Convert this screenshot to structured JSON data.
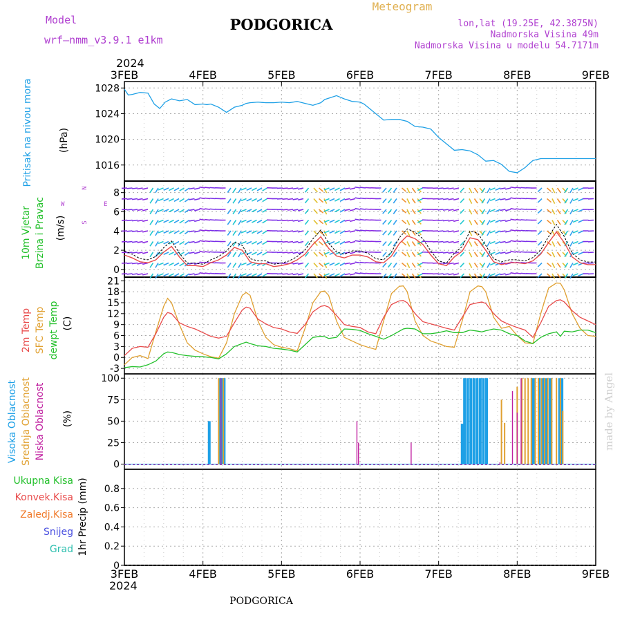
{
  "header": {
    "model_label": "Model",
    "model_name": "wrf—nmm_v3.9.1  e1km",
    "location": "PODGORICA",
    "product": "Meteogram",
    "lonlat": "lon,lat (19.25E, 42.3875N)",
    "elevation": "Nadmorska Visina 49m",
    "model_elevation": "Nadmorska Visina u modelu 54.7171m"
  },
  "footer": {
    "location": "PODGORICA"
  },
  "watermark": "made by Angel",
  "colors": {
    "pressure": "#1ea0e6",
    "t2m": "#e84a4a",
    "sfc": "#e0a030",
    "dewpt": "#22c02a",
    "high_cloud": "#1ea0e6",
    "mid_cloud": "#e0a030",
    "low_cloud": "#c020a0",
    "wind_label": "#22c02a",
    "wind_label2": "#22c02a",
    "compass": "#b040d0"
  },
  "chart_data": [
    {
      "type": "line",
      "panel": "pressure",
      "ylabel": [
        "Pritisak na nivou mora",
        "(hPa)"
      ],
      "top_year": "2024",
      "x_ticks": [
        "3FEB",
        "4FEB",
        "5FEB",
        "6FEB",
        "7FEB",
        "8FEB",
        "9FEB"
      ],
      "ylim": [
        1013.5,
        1029
      ],
      "y_ticks": [
        1016,
        1020,
        1024,
        1028
      ],
      "grid": true,
      "series": [
        {
          "name": "Pritisak na nivou mora",
          "x": [
            0,
            0.05,
            0.1,
            0.2,
            0.3,
            0.38,
            0.45,
            0.52,
            0.6,
            0.7,
            0.8,
            0.9,
            1.0,
            1.05,
            1.1,
            1.2,
            1.3,
            1.4,
            1.5,
            1.55,
            1.6,
            1.7,
            1.8,
            1.9,
            2.0,
            2.1,
            2.2,
            2.3,
            2.4,
            2.5,
            2.55,
            2.6,
            2.7,
            2.8,
            2.9,
            3.0,
            3.05,
            3.1,
            3.2,
            3.3,
            3.4,
            3.5,
            3.6,
            3.7,
            3.8,
            3.9,
            4.0,
            4.1,
            4.2,
            4.3,
            4.4,
            4.5,
            4.6,
            4.7,
            4.8,
            4.9,
            5.0,
            5.1,
            5.2,
            5.3,
            5.4,
            5.5,
            5.6,
            5.7,
            5.8,
            5.9,
            6.0
          ],
          "y": [
            1027.8,
            1026.9,
            1027.0,
            1027.3,
            1027.2,
            1025.5,
            1024.8,
            1025.8,
            1026.3,
            1026.0,
            1026.2,
            1025.4,
            1025.5,
            1025.4,
            1025.5,
            1025.0,
            1024.2,
            1025.0,
            1025.3,
            1025.6,
            1025.7,
            1025.8,
            1025.7,
            1025.7,
            1025.8,
            1025.7,
            1025.9,
            1025.6,
            1025.3,
            1025.7,
            1026.2,
            1026.4,
            1026.8,
            1026.3,
            1025.9,
            1025.8,
            1025.5,
            1025.0,
            1024.0,
            1023.0,
            1023.1,
            1023.1,
            1022.8,
            1022.0,
            1021.9,
            1021.6,
            1020.3,
            1019.3,
            1018.3,
            1018.4,
            1018.2,
            1017.6,
            1016.6,
            1016.7,
            1016.1,
            1015.0,
            1014.8,
            1015.6,
            1016.7,
            1017.0,
            1017.0,
            1017.0,
            1017.0,
            1017.0,
            1017.0,
            1017.0,
            1017.0
          ]
        }
      ]
    },
    {
      "type": "line",
      "panel": "wind",
      "ylabel": [
        "10m Vjetar",
        "Brzina i Pravac",
        "(m/s)"
      ],
      "compass": [
        "N",
        "^",
        "|",
        "<",
        "W",
        "E",
        "S"
      ],
      "ylim": [
        -0.8,
        9.2
      ],
      "y_ticks": [
        0,
        2,
        4,
        6,
        8
      ],
      "grid": true,
      "series": [
        {
          "name": "speed",
          "x": [
            0,
            0.1,
            0.2,
            0.3,
            0.4,
            0.5,
            0.6,
            0.7,
            0.8,
            0.9,
            1.0,
            1.1,
            1.2,
            1.3,
            1.4,
            1.5,
            1.6,
            1.7,
            1.8,
            1.9,
            2.0,
            2.1,
            2.2,
            2.3,
            2.4,
            2.5,
            2.6,
            2.7,
            2.8,
            2.9,
            3.0,
            3.1,
            3.2,
            3.3,
            3.4,
            3.5,
            3.6,
            3.7,
            3.8,
            3.9,
            4.0,
            4.1,
            4.2,
            4.3,
            4.4,
            4.5,
            4.6,
            4.7,
            4.8,
            4.9,
            5.0,
            5.1,
            5.2,
            5.3,
            5.4,
            5.5,
            5.6,
            5.7,
            5.8,
            5.9,
            6.0
          ],
          "y": [
            1.5,
            1.2,
            0.8,
            0.7,
            1.0,
            1.8,
            2.4,
            1.3,
            0.4,
            0.4,
            0.3,
            0.7,
            1.0,
            1.5,
            2.3,
            2.0,
            0.8,
            0.6,
            0.6,
            0.3,
            0.4,
            0.6,
            1.0,
            1.6,
            2.6,
            3.4,
            2.2,
            1.4,
            1.2,
            1.5,
            1.5,
            1.3,
            0.8,
            0.7,
            1.4,
            2.7,
            3.5,
            3.2,
            2.6,
            1.5,
            0.6,
            0.4,
            1.3,
            1.9,
            3.3,
            3.1,
            2.0,
            0.8,
            0.5,
            0.7,
            0.7,
            0.6,
            0.9,
            1.6,
            2.8,
            3.9,
            2.8,
            1.3,
            0.7,
            0.5,
            0.5
          ]
        }
      ]
    },
    {
      "type": "line",
      "panel": "temperature",
      "ylabel": [
        "2m Temp",
        "SFC Temp",
        "dewpt Temp",
        "(C)"
      ],
      "ylim": [
        -4.5,
        22
      ],
      "y_ticks": [
        -3,
        0,
        3,
        6,
        9,
        12,
        15,
        18,
        21
      ],
      "grid": true,
      "series": [
        {
          "name": "2m Temp",
          "x": [
            0,
            0.1,
            0.2,
            0.3,
            0.4,
            0.5,
            0.55,
            0.6,
            0.7,
            0.8,
            0.9,
            1.0,
            1.1,
            1.2,
            1.3,
            1.4,
            1.5,
            1.55,
            1.6,
            1.7,
            1.8,
            1.9,
            2.0,
            2.1,
            2.2,
            2.3,
            2.4,
            2.5,
            2.55,
            2.6,
            2.7,
            2.8,
            2.9,
            3.0,
            3.1,
            3.2,
            3.3,
            3.4,
            3.5,
            3.55,
            3.6,
            3.7,
            3.8,
            3.9,
            4.0,
            4.1,
            4.2,
            4.3,
            4.4,
            4.5,
            4.55,
            4.6,
            4.7,
            4.8,
            4.9,
            5.0,
            5.1,
            5.2,
            5.3,
            5.4,
            5.5,
            5.55,
            5.6,
            5.7,
            5.8,
            5.9,
            6.0
          ],
          "y": [
            0.5,
            2.5,
            3.0,
            2.8,
            6.5,
            11.0,
            12.3,
            12.0,
            9.5,
            8.5,
            7.8,
            6.8,
            5.8,
            5.3,
            5.8,
            9.5,
            13.0,
            13.8,
            13.5,
            10.5,
            9.2,
            8.2,
            7.8,
            7.0,
            6.6,
            9.0,
            12.5,
            14.0,
            14.2,
            13.8,
            11.5,
            9.0,
            8.5,
            8.2,
            7.0,
            6.5,
            11.0,
            14.5,
            15.5,
            15.6,
            15.0,
            12.0,
            9.8,
            9.2,
            8.6,
            8.0,
            7.5,
            11.0,
            14.5,
            15.0,
            15.2,
            14.8,
            12.0,
            10.0,
            9.0,
            8.2,
            7.5,
            5.5,
            9.5,
            14.0,
            15.6,
            15.8,
            15.2,
            12.8,
            11.0,
            10.0,
            9.0
          ]
        },
        {
          "name": "SFC Temp",
          "x": [
            0,
            0.1,
            0.2,
            0.3,
            0.4,
            0.5,
            0.55,
            0.6,
            0.7,
            0.8,
            0.9,
            1.0,
            1.1,
            1.2,
            1.3,
            1.4,
            1.5,
            1.55,
            1.6,
            1.7,
            1.8,
            1.9,
            2.0,
            2.1,
            2.2,
            2.3,
            2.4,
            2.5,
            2.55,
            2.6,
            2.7,
            2.8,
            2.9,
            3.0,
            3.1,
            3.2,
            3.3,
            3.4,
            3.5,
            3.55,
            3.6,
            3.7,
            3.8,
            3.9,
            4.0,
            4.1,
            4.2,
            4.3,
            4.4,
            4.5,
            4.55,
            4.6,
            4.7,
            4.8,
            4.9,
            5.0,
            5.1,
            5.2,
            5.3,
            5.4,
            5.5,
            5.55,
            5.6,
            5.7,
            5.8,
            5.9,
            6.0
          ],
          "y": [
            -2.0,
            0.0,
            0.5,
            -0.3,
            7.0,
            14.0,
            16.2,
            15.0,
            9.0,
            4.0,
            2.0,
            1.0,
            0.2,
            -0.2,
            4.0,
            12.0,
            17.0,
            17.8,
            17.0,
            10.0,
            5.5,
            3.5,
            2.8,
            2.4,
            1.8,
            8.0,
            15.0,
            18.0,
            18.2,
            17.0,
            10.0,
            5.5,
            4.5,
            3.5,
            2.8,
            2.2,
            10.0,
            17.5,
            19.5,
            19.6,
            18.0,
            10.0,
            6.0,
            4.5,
            3.8,
            3.0,
            2.8,
            10.0,
            18.0,
            19.6,
            19.4,
            18.0,
            11.0,
            8.0,
            8.5,
            6.0,
            4.0,
            3.8,
            12.0,
            19.0,
            20.4,
            20.3,
            18.5,
            12.0,
            8.0,
            6.0,
            5.8
          ]
        },
        {
          "name": "dewpt Temp",
          "x": [
            0,
            0.1,
            0.2,
            0.3,
            0.4,
            0.5,
            0.55,
            0.6,
            0.7,
            0.8,
            0.9,
            1.0,
            1.1,
            1.2,
            1.3,
            1.4,
            1.5,
            1.55,
            1.6,
            1.7,
            1.8,
            1.9,
            2.0,
            2.1,
            2.2,
            2.3,
            2.4,
            2.5,
            2.55,
            2.6,
            2.7,
            2.8,
            2.9,
            3.0,
            3.1,
            3.2,
            3.3,
            3.4,
            3.5,
            3.55,
            3.6,
            3.7,
            3.8,
            3.9,
            4.0,
            4.1,
            4.2,
            4.3,
            4.4,
            4.5,
            4.55,
            4.6,
            4.7,
            4.8,
            4.9,
            5.0,
            5.1,
            5.2,
            5.3,
            5.4,
            5.5,
            5.55,
            5.6,
            5.7,
            5.8,
            5.9,
            6.0
          ],
          "y": [
            -2.8,
            -2.5,
            -2.6,
            -2.0,
            -1.0,
            1.0,
            1.5,
            1.4,
            0.8,
            0.5,
            0.3,
            0.2,
            0.0,
            -0.4,
            1.0,
            3.0,
            3.8,
            4.2,
            3.8,
            3.2,
            3.0,
            2.5,
            2.3,
            2.0,
            1.5,
            3.5,
            5.5,
            5.8,
            5.7,
            5.2,
            5.5,
            7.8,
            7.7,
            7.4,
            6.5,
            5.8,
            5.0,
            6.0,
            7.2,
            7.8,
            8.0,
            7.8,
            6.5,
            6.5,
            6.8,
            7.3,
            6.8,
            6.8,
            7.5,
            7.2,
            7.0,
            7.3,
            7.8,
            7.5,
            6.5,
            6.0,
            4.5,
            3.8,
            5.5,
            6.5,
            7.0,
            5.8,
            7.2,
            7.0,
            7.5,
            7.5,
            6.8
          ]
        }
      ]
    },
    {
      "type": "bar",
      "panel": "cloud",
      "ylabel": [
        "Visoka Oblacnost",
        "Srednja Oblacnost",
        "Niska Oblacnost",
        "(%)"
      ],
      "ylim": [
        -6,
        105
      ],
      "y_ticks": [
        0,
        25,
        50,
        75,
        100
      ],
      "grid": true,
      "series": [
        {
          "name": "Visoka Oblacnost",
          "x": [
            1.08,
            1.22,
            1.25,
            1.27,
            4.3,
            4.33,
            4.37,
            4.41,
            4.45,
            4.49,
            4.53,
            4.57,
            4.61,
            5.19,
            5.22,
            5.28,
            5.33,
            5.37,
            5.42,
            5.54,
            5.57
          ],
          "y": [
            50,
            100,
            100,
            100,
            47,
            100,
            100,
            100,
            100,
            100,
            100,
            100,
            100,
            100,
            100,
            100,
            100,
            100,
            100,
            100,
            100
          ]
        },
        {
          "name": "Srednja Oblacnost",
          "x": [
            1.2,
            1.26,
            4.8,
            4.84,
            5.0,
            5.06,
            5.1,
            5.14,
            5.18,
            5.23,
            5.27,
            5.31,
            5.35,
            5.39,
            5.44,
            5.5,
            5.55,
            5.58
          ],
          "y": [
            100,
            100,
            75,
            48,
            90,
            100,
            100,
            100,
            100,
            100,
            100,
            100,
            100,
            100,
            100,
            100,
            100,
            62
          ]
        },
        {
          "name": "Niska Oblacnost",
          "x": [
            1.23,
            2.96,
            2.98,
            3.65,
            4.78,
            4.94,
            5.0,
            5.05
          ],
          "y": [
            100,
            50,
            25,
            25,
            2,
            85,
            60,
            100
          ]
        }
      ]
    },
    {
      "type": "line",
      "panel": "precip",
      "ylabel": [
        "1hr Precip (mm)"
      ],
      "legend": [
        "Ukupna Kisa",
        "Konvek.Kisa",
        "Zaledj.Kisa",
        "Snijeg",
        "Grad"
      ],
      "ylim": [
        0,
        1.0
      ],
      "y_ticks": [
        0,
        0.2,
        0.4,
        0.6,
        0.8
      ],
      "x_ticks": [
        "3FEB",
        "4FEB",
        "5FEB",
        "6FEB",
        "7FEB",
        "8FEB",
        "9FEB"
      ],
      "bottom_year": "2024",
      "grid": true,
      "series": [
        {
          "name": "Ukupna Kisa",
          "values": [
            0,
            0,
            0,
            0,
            0,
            0,
            0
          ]
        },
        {
          "name": "Konvek.Kisa",
          "values": [
            0,
            0,
            0,
            0,
            0,
            0,
            0
          ]
        },
        {
          "name": "Zaledj.Kisa",
          "values": [
            0,
            0,
            0,
            0,
            0,
            0,
            0
          ]
        },
        {
          "name": "Snijeg",
          "values": [
            0,
            0,
            0,
            0,
            0,
            0,
            0
          ]
        },
        {
          "name": "Grad",
          "values": [
            0,
            0,
            0,
            0,
            0,
            0,
            0
          ]
        }
      ]
    }
  ]
}
